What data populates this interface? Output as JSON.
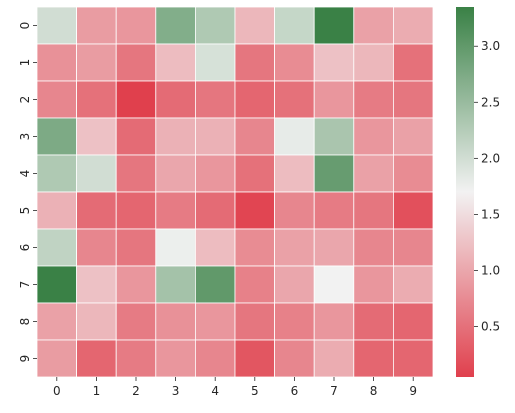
{
  "chart_data": {
    "type": "heatmap",
    "title": "",
    "xlabel": "",
    "ylabel": "",
    "x_categories": [
      "0",
      "1",
      "2",
      "3",
      "4",
      "5",
      "6",
      "7",
      "8",
      "9"
    ],
    "y_categories": [
      "0",
      "1",
      "2",
      "3",
      "4",
      "5",
      "6",
      "7",
      "8",
      "9"
    ],
    "values": [
      [
        2.0,
        0.9,
        0.85,
        2.7,
        2.3,
        1.15,
        2.1,
        3.35,
        0.95,
        1.05
      ],
      [
        0.8,
        0.9,
        0.55,
        1.2,
        1.95,
        0.55,
        0.75,
        1.25,
        1.15,
        0.5
      ],
      [
        0.7,
        0.5,
        0.05,
        0.45,
        0.55,
        0.4,
        0.5,
        0.85,
        0.6,
        0.55
      ],
      [
        2.75,
        1.25,
        0.45,
        1.1,
        1.1,
        0.7,
        1.8,
        2.35,
        0.85,
        0.95
      ],
      [
        2.3,
        2.0,
        0.55,
        1.0,
        0.85,
        0.5,
        1.2,
        2.95,
        0.95,
        0.75
      ],
      [
        1.1,
        0.45,
        0.4,
        0.6,
        0.45,
        0.1,
        0.7,
        0.6,
        0.55,
        0.2
      ],
      [
        2.15,
        0.7,
        0.55,
        1.75,
        1.2,
        0.75,
        0.95,
        1.0,
        0.7,
        0.7
      ],
      [
        3.35,
        1.25,
        0.85,
        2.4,
        3.0,
        0.65,
        1.0,
        1.7,
        0.85,
        1.05
      ],
      [
        0.95,
        1.15,
        0.6,
        0.8,
        0.85,
        0.55,
        0.65,
        0.85,
        0.45,
        0.4
      ],
      [
        0.9,
        0.4,
        0.6,
        0.85,
        0.7,
        0.25,
        0.7,
        1.05,
        0.4,
        0.4
      ]
    ],
    "colorbar": {
      "vmin": 0.05,
      "vmax": 3.35,
      "ticks": [
        0.5,
        1.0,
        1.5,
        2.0,
        2.5,
        3.0
      ],
      "tick_labels": [
        "0.5",
        "1.0",
        "1.5",
        "2.0",
        "2.5",
        "3.0"
      ]
    },
    "colormap": {
      "low": "#e0404d",
      "mid": "#f2f2f2",
      "high": "#3a8146"
    },
    "grid": true,
    "grid_color": "#ffffff",
    "legend": "colorbar-right"
  }
}
